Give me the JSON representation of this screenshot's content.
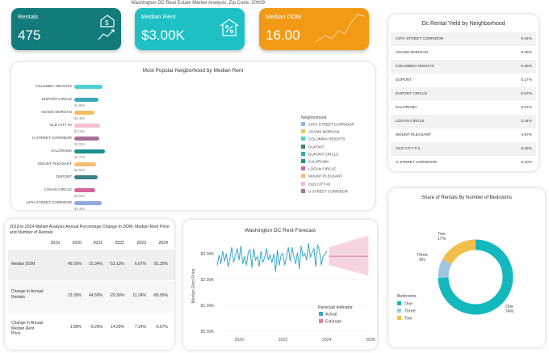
{
  "header": {
    "title": "Washington DC Real Estate Market Analysis, Zip Code: 20009"
  },
  "kpis": [
    {
      "label": "Rentals",
      "value": "475",
      "color": "#127b7b",
      "icon": "house-dollar-chart-icon"
    },
    {
      "label": "Median Rent",
      "value": "$3.00K",
      "color": "#1ec0c4",
      "icon": "house-percent-icon"
    },
    {
      "label": "Median DOM",
      "value": "16.00",
      "color": "#f29a16",
      "icon": "sparkline-icon"
    }
  ],
  "popular": {
    "title": "Most Popular Neigborhood by Median Rent",
    "legend_title": "Neighborhood",
    "chart_data": {
      "type": "bar",
      "categories": [
        "COLUMBIA HEIGHTS",
        "DUPONT CIRCLE",
        "ADAMS MORGAN",
        "OLD CITY #2",
        "U STREET CORRIDOR",
        "KALORAMA",
        "MOUNT PLEASANT",
        "DUPONT",
        "LOGAN CIRCLE",
        "14TH STREET CORRIDOR"
      ],
      "values": [
        null,
        2.95,
        2.45,
        3.15,
        3.0,
        3.77,
        2.6,
        2.8,
        2.5,
        3.3
      ],
      "value_labels": [
        "",
        "$2.95K",
        "$2.45K",
        "$3.15K",
        "$3.00K",
        "$3.77K",
        "$2.60K",
        "",
        "$2.50K",
        "$3.30K"
      ],
      "colors": [
        "#4fd0d6",
        "#3aa9b8",
        "#f2c063",
        "#f3bed2",
        "#a56f9e",
        "#1d8f8c",
        "#f5bd71",
        "#3a7f86",
        "#d4659a",
        "#8fa9de"
      ],
      "legend": [
        "14TH STREET CORRIDOR",
        "ADAMS MORGAN",
        "COLUMBIA HEIGHTS",
        "DUPONT",
        "DUPONT CIRCLE",
        "KALORAMA",
        "LOGAN CIRCLE",
        "MOUNT PLEASANT",
        "OLD CITY #2",
        "U STREET CORRIDOR"
      ],
      "legend_colors": [
        "#8fb4e3",
        "#f2c063",
        "#4fd0d6",
        "#3a7f86",
        "#3aa9b8",
        "#1d8f8c",
        "#d4659a",
        "#f5bd71",
        "#f3bed2",
        "#a56f9e"
      ]
    }
  },
  "yield": {
    "title": "Dc Rental Yield by Neighborhood",
    "rows": [
      {
        "name": "14TH STREET CORRIDOR",
        "value": "5.24%"
      },
      {
        "name": "ADAMS MORGAN",
        "value": "5.09%"
      },
      {
        "name": "COLUMBIA HEIGHTS",
        "value": "5.26%"
      },
      {
        "name": "DUPONT",
        "value": "5.17%"
      },
      {
        "name": "DUPONT CIRCLE",
        "value": "5.57%"
      },
      {
        "name": "KALORAMA",
        "value": "5.57%"
      },
      {
        "name": "LOGAN CIRCLE",
        "value": "3.44%"
      },
      {
        "name": "MOUNT PLEASANT",
        "value": "4.87%"
      },
      {
        "name": "OLD CITY # 2",
        "value": "5.45%"
      },
      {
        "name": "U STREET CORRIDOR",
        "value": "6.10%"
      }
    ]
  },
  "annual": {
    "title": "2019 to 2024 Market Analysis Annual Percentage Change In DOM, Median Rent Price and Number of Rentals",
    "years": [
      "2019",
      "2020",
      "2021",
      "2022",
      "2023",
      "2024"
    ],
    "rows": [
      {
        "label": "Median DOM",
        "cells": [
          "",
          "45.00%",
          "10.34%",
          "-53.13%",
          "6.67%",
          "81.25%"
        ]
      },
      {
        "label": "Change in Annual Rentals",
        "cells": [
          "",
          "23.30%",
          "44.50%",
          "-29.30%",
          "11.24%",
          "-85.05%"
        ]
      },
      {
        "label": "Change in Annual Median Rent Price",
        "cells": [
          "",
          "1.89%",
          "-9.26%",
          "14.29%",
          "7.14%",
          "-6.67%"
        ]
      }
    ]
  },
  "forecast": {
    "title": "Washington DC Rent Forecast",
    "ylabel": "Median Rent Price",
    "yticks": [
      "$3.00K",
      "$2.00K",
      "$1.00K",
      "$0.00K"
    ],
    "xticks": [
      "2020",
      "2022",
      "2024",
      "2026"
    ],
    "legend_title": "Forecast indicator",
    "legend": [
      "Actual",
      "Estimate"
    ],
    "colors": {
      "actual": "#3aa6c6",
      "estimate": "#e07fa8",
      "band": "#f6d5e2"
    },
    "chart_data": {
      "type": "line",
      "ylim": [
        0,
        3.5
      ],
      "xlim": [
        2019,
        2026
      ],
      "series": [
        {
          "name": "Actual",
          "x_start": 2019.0,
          "x_end": 2024.0,
          "values": [
            2.55,
            2.95,
            2.6,
            3.1,
            2.7,
            3.0,
            2.5,
            2.8,
            3.25,
            2.65,
            2.95,
            3.2,
            2.75,
            3.3,
            2.6,
            2.9,
            2.55,
            3.05,
            3.15,
            2.45,
            3.2,
            2.75,
            2.9,
            2.5,
            3.1,
            2.65,
            2.85,
            3.2,
            2.75,
            2.95,
            2.65,
            3.0,
            2.3,
            3.15,
            2.55,
            2.95,
            3.0,
            2.55,
            2.9,
            3.25,
            2.7,
            3.25,
            2.9,
            2.6,
            3.05,
            2.4,
            3.3,
            2.9,
            3.0,
            2.75,
            3.4,
            2.85,
            3.05,
            3.2,
            2.5,
            3.35,
            3.1,
            2.55,
            2.9,
            2.95,
            3.1
          ]
        },
        {
          "name": "Estimate",
          "x_start": 2024.1,
          "x_end": 2025.9,
          "values": [
            2.9,
            2.9
          ],
          "band_low": [
            2.55,
            2.15
          ],
          "band_high": [
            3.25,
            3.7
          ]
        }
      ]
    }
  },
  "pie": {
    "title": "Share of Rentals By Number of Bedrooms",
    "legend_title": "Bedrooms",
    "chart_data": {
      "type": "pie",
      "donut": true,
      "labels": [
        "One",
        "Three",
        "Two"
      ],
      "values": [
        74,
        8,
        17
      ],
      "value_labels": [
        "74%",
        "8%",
        "17%"
      ],
      "colors": [
        "#13b8bd",
        "#9ec6e2",
        "#f2c04a"
      ]
    }
  }
}
